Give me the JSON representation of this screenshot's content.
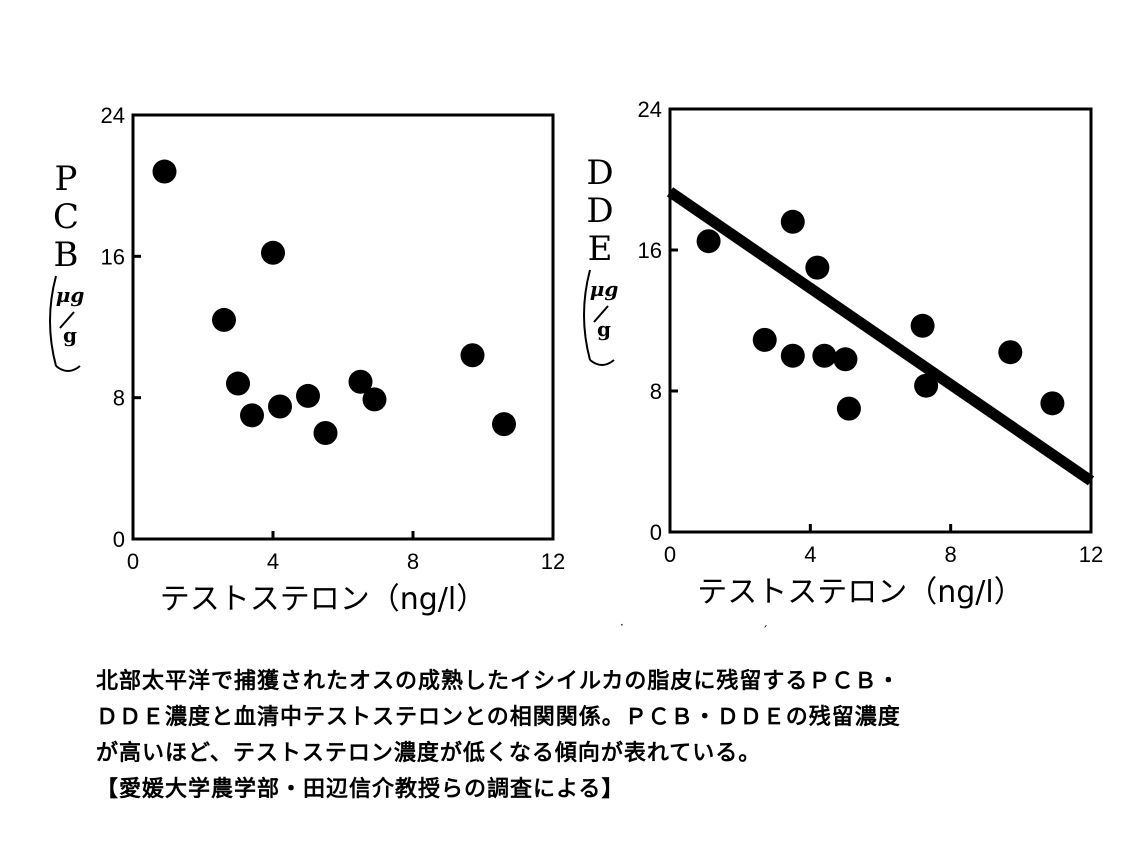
{
  "chart_data": [
    {
      "type": "scatter",
      "ylabel_main": "PCB",
      "ylabel_unit_num": "μg",
      "ylabel_unit_den": "g",
      "xlabel": "テストステロン（ng/l）",
      "xlim": [
        0,
        12
      ],
      "ylim": [
        0,
        24
      ],
      "xticks": [
        "0",
        "4",
        "8",
        "12"
      ],
      "yticks": [
        "0",
        "8",
        "16",
        "24"
      ],
      "points": [
        {
          "x": 0.9,
          "y": 20.8
        },
        {
          "x": 2.6,
          "y": 12.4
        },
        {
          "x": 3.0,
          "y": 8.8
        },
        {
          "x": 3.4,
          "y": 7.0
        },
        {
          "x": 4.0,
          "y": 16.2
        },
        {
          "x": 4.2,
          "y": 7.5
        },
        {
          "x": 5.0,
          "y": 8.1
        },
        {
          "x": 5.5,
          "y": 6.0
        },
        {
          "x": 6.5,
          "y": 8.9
        },
        {
          "x": 6.9,
          "y": 7.9
        },
        {
          "x": 9.7,
          "y": 10.4
        },
        {
          "x": 10.6,
          "y": 6.5
        }
      ],
      "trendline": null
    },
    {
      "type": "scatter",
      "ylabel_main": "DDE",
      "ylabel_unit_num": "μg",
      "ylabel_unit_den": "g",
      "xlabel": "テストステロン（ng/l）",
      "xlim": [
        0,
        12
      ],
      "ylim": [
        0,
        24
      ],
      "xticks": [
        "0",
        "4",
        "8",
        "12"
      ],
      "yticks": [
        "0",
        "8",
        "16",
        "24"
      ],
      "points": [
        {
          "x": 1.1,
          "y": 16.5
        },
        {
          "x": 2.7,
          "y": 10.9
        },
        {
          "x": 3.5,
          "y": 17.6
        },
        {
          "x": 3.5,
          "y": 10.0
        },
        {
          "x": 4.2,
          "y": 15.0
        },
        {
          "x": 4.4,
          "y": 10.0
        },
        {
          "x": 5.0,
          "y": 9.8
        },
        {
          "x": 5.1,
          "y": 7.0
        },
        {
          "x": 7.2,
          "y": 11.7
        },
        {
          "x": 7.3,
          "y": 8.3
        },
        {
          "x": 9.7,
          "y": 10.2
        },
        {
          "x": 10.9,
          "y": 7.3
        }
      ],
      "trendline": {
        "x": [
          0,
          12
        ],
        "y": [
          19.3,
          2.9
        ]
      }
    }
  ],
  "caption": {
    "line1": "北部太平洋で捕獲されたオスの成熟したイシイルカの脂皮に残留するＰＣＢ・",
    "line2": "ＤＤＥ濃度と血清中テストステロンとの相関関係。ＰＣＢ・ＤＤＥの残留濃度",
    "line3": "が高いほど、テストステロン濃度が低くなる傾向が表れている。",
    "line4": "【愛媛大学農学部・田辺信介教授らの調査による】"
  }
}
